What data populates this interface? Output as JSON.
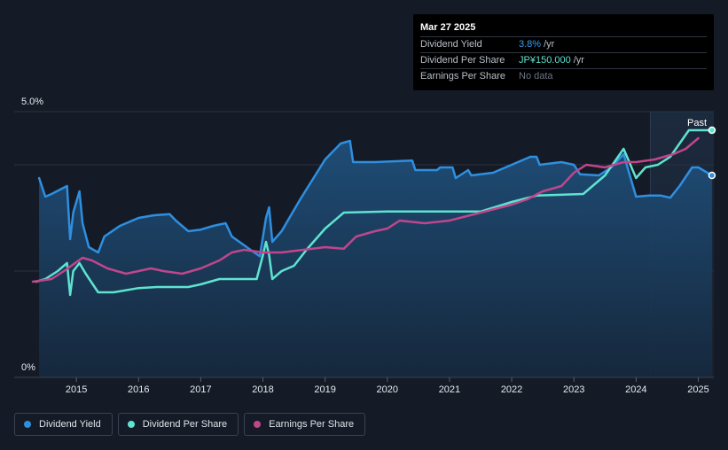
{
  "tooltip": {
    "date": "Mar 27 2025",
    "rows": [
      {
        "label": "Dividend Yield",
        "value": "3.8%",
        "unit": "/yr",
        "color": "#3d9be9"
      },
      {
        "label": "Dividend Per Share",
        "value": "JP¥150.000",
        "unit": "/yr",
        "color": "#5fe3d0"
      },
      {
        "label": "Earnings Per Share",
        "value": "No data",
        "unit": "",
        "color": "#6b7280"
      }
    ]
  },
  "legend": [
    {
      "label": "Dividend Yield",
      "color": "#2e8fe0"
    },
    {
      "label": "Dividend Per Share",
      "color": "#5fe3d0"
    },
    {
      "label": "Earnings Per Share",
      "color": "#c0468c"
    }
  ],
  "past_label": "Past",
  "chart_data": {
    "type": "line",
    "title": "",
    "y_ticks": [
      "5.0%",
      "0%"
    ],
    "ylim": [
      0,
      5.0
    ],
    "xlim": [
      2014.0,
      2025.25
    ],
    "x_ticks": [
      2015,
      2016,
      2017,
      2018,
      2019,
      2020,
      2021,
      2022,
      2023,
      2024,
      2025
    ],
    "past_region_start": 2024.23,
    "series": [
      {
        "name": "Dividend Yield",
        "color": "#2e8fe0",
        "fill": true,
        "x": [
          2014.4,
          2014.5,
          2014.6,
          2014.85,
          2014.9,
          2014.95,
          2015.05,
          2015.1,
          2015.2,
          2015.35,
          2015.45,
          2015.7,
          2016.0,
          2016.25,
          2016.5,
          2016.6,
          2016.8,
          2017.0,
          2017.2,
          2017.4,
          2017.5,
          2017.8,
          2017.95,
          2018.05,
          2018.1,
          2018.15,
          2018.3,
          2018.6,
          2019.0,
          2019.25,
          2019.4,
          2019.45,
          2019.8,
          2020.4,
          2020.45,
          2020.8,
          2020.85,
          2021.05,
          2021.1,
          2021.3,
          2021.35,
          2021.7,
          2022.0,
          2022.3,
          2022.4,
          2022.45,
          2022.8,
          2023.0,
          2023.1,
          2023.4,
          2023.6,
          2023.8,
          2024.0,
          2024.2,
          2024.4,
          2024.55,
          2024.7,
          2024.9,
          2025.0,
          2025.22
        ],
        "values": [
          3.75,
          3.4,
          3.45,
          3.6,
          2.6,
          3.1,
          3.5,
          2.9,
          2.45,
          2.35,
          2.65,
          2.85,
          3.0,
          3.05,
          3.07,
          2.95,
          2.75,
          2.78,
          2.85,
          2.9,
          2.65,
          2.4,
          2.28,
          3.0,
          3.2,
          2.55,
          2.75,
          3.35,
          4.1,
          4.4,
          4.45,
          4.05,
          4.05,
          4.08,
          3.9,
          3.9,
          3.95,
          3.95,
          3.75,
          3.9,
          3.8,
          3.85,
          4.0,
          4.15,
          4.15,
          4.0,
          4.05,
          4.0,
          3.82,
          3.8,
          3.95,
          4.2,
          3.4,
          3.42,
          3.42,
          3.38,
          3.6,
          3.95,
          3.95,
          3.8
        ]
      },
      {
        "name": "Dividend Per Share",
        "color": "#5fe3d0",
        "fill": false,
        "x": [
          2014.35,
          2014.5,
          2014.7,
          2014.85,
          2014.9,
          2014.95,
          2015.05,
          2015.15,
          2015.35,
          2015.6,
          2016.0,
          2016.3,
          2016.8,
          2017.0,
          2017.3,
          2017.9,
          2018.0,
          2018.05,
          2018.1,
          2018.15,
          2018.3,
          2018.5,
          2018.7,
          2019.0,
          2019.3,
          2020.0,
          2021.0,
          2021.5,
          2022.0,
          2022.4,
          2023.15,
          2023.5,
          2023.8,
          2024.0,
          2024.15,
          2024.35,
          2024.55,
          2024.7,
          2024.85,
          2025.22
        ],
        "values": [
          1.8,
          1.85,
          2.0,
          2.15,
          1.55,
          2.0,
          2.15,
          1.95,
          1.6,
          1.6,
          1.68,
          1.7,
          1.7,
          1.75,
          1.85,
          1.85,
          2.3,
          2.55,
          2.3,
          1.85,
          2.0,
          2.1,
          2.4,
          2.8,
          3.1,
          3.12,
          3.12,
          3.12,
          3.3,
          3.42,
          3.45,
          3.8,
          4.3,
          3.75,
          3.95,
          4.0,
          4.15,
          4.4,
          4.65,
          4.65
        ]
      },
      {
        "name": "Earnings Per Share",
        "color": "#c0468c",
        "fill": false,
        "x": [
          2014.3,
          2014.6,
          2014.8,
          2015.1,
          2015.25,
          2015.5,
          2015.8,
          2016.0,
          2016.2,
          2016.4,
          2016.7,
          2017.0,
          2017.3,
          2017.5,
          2017.7,
          2018.0,
          2018.3,
          2018.5,
          2018.8,
          2019.0,
          2019.3,
          2019.5,
          2019.8,
          2020.0,
          2020.2,
          2020.6,
          2021.0,
          2021.5,
          2022.0,
          2022.25,
          2022.5,
          2022.8,
          2023.0,
          2023.2,
          2023.5,
          2023.8,
          2024.0,
          2024.3,
          2024.6,
          2024.8,
          2025.0
        ],
        "values": [
          1.8,
          1.85,
          2.0,
          2.25,
          2.2,
          2.05,
          1.95,
          2.0,
          2.05,
          2.0,
          1.95,
          2.05,
          2.2,
          2.35,
          2.4,
          2.35,
          2.35,
          2.38,
          2.42,
          2.45,
          2.42,
          2.65,
          2.75,
          2.8,
          2.95,
          2.9,
          2.95,
          3.1,
          3.25,
          3.35,
          3.5,
          3.6,
          3.85,
          4.0,
          3.95,
          4.05,
          4.05,
          4.1,
          4.2,
          4.3,
          4.5
        ]
      }
    ],
    "end_markers": [
      {
        "series": "Dividend Yield",
        "x": 2025.22,
        "value": 3.8
      },
      {
        "series": "Dividend Per Share",
        "x": 2025.22,
        "value": 4.65
      }
    ]
  }
}
